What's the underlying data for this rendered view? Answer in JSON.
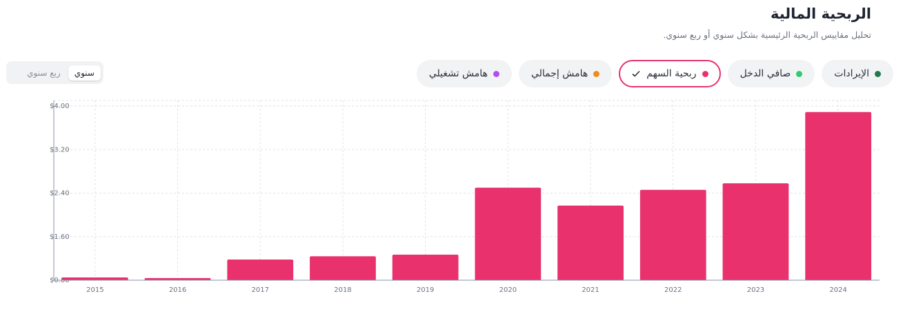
{
  "header": {
    "title": "الربحية المالية",
    "subtitle": "تحليل مقاييس الربحية الرئيسية بشكل سنوي أو ربع سنوي."
  },
  "period_toggle": {
    "options": [
      "سنوي",
      "ربع سنوي"
    ],
    "active": 0
  },
  "metrics": [
    {
      "label": "الإيرادات",
      "color": "#1f7a4d",
      "selected": false
    },
    {
      "label": "صافي الدخل",
      "color": "#2ecc71",
      "selected": false
    },
    {
      "label": "ربحية السهم",
      "color": "#e8316d",
      "selected": true
    },
    {
      "label": "هامش إجمالي",
      "color": "#f08c1e",
      "selected": false
    },
    {
      "label": "هامش تشغيلي",
      "color": "#b24df0",
      "selected": false
    }
  ],
  "chart_data": {
    "type": "bar",
    "categories": [
      "2015",
      "2016",
      "2017",
      "2018",
      "2019",
      "2020",
      "2021",
      "2022",
      "2023",
      "2024"
    ],
    "values": [
      0.85,
      0.84,
      1.18,
      1.24,
      1.27,
      2.5,
      2.17,
      2.46,
      2.58,
      3.89
    ],
    "color": "#e8316d",
    "ylim": [
      0.8,
      4.0
    ],
    "yticks": [
      {
        "value": 0.8,
        "label": "$0.80"
      },
      {
        "value": 1.6,
        "label": "$1.60"
      },
      {
        "value": 2.4,
        "label": "$2.40"
      },
      {
        "value": 3.2,
        "label": "$3.20"
      },
      {
        "value": 4.0,
        "label": "$4.00"
      }
    ],
    "grid": true
  }
}
